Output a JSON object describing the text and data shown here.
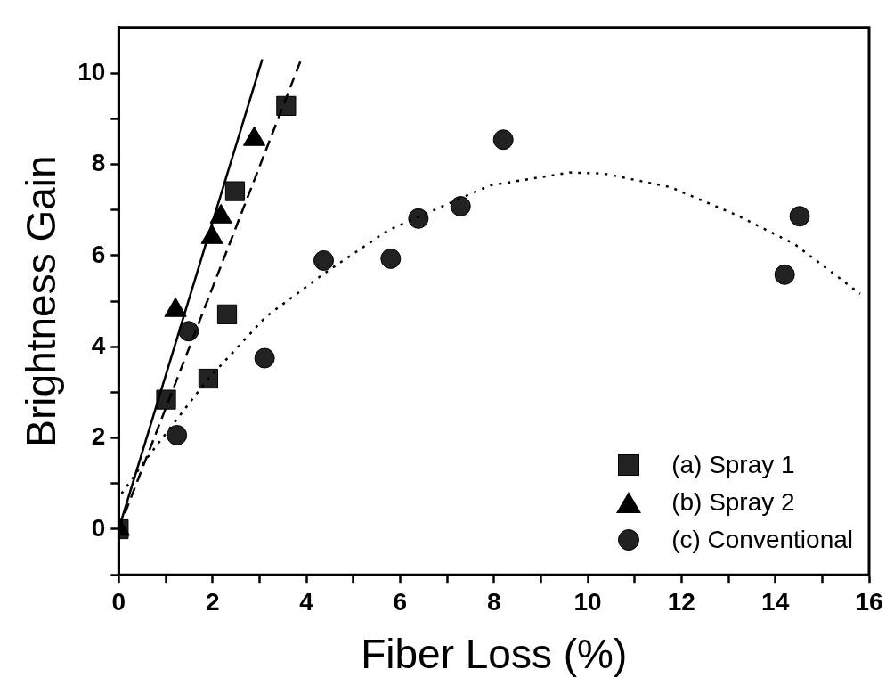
{
  "chart_data": {
    "type": "scatter",
    "xlabel": "Fiber Loss (%)",
    "ylabel": "Brightness Gain",
    "xlim": [
      0,
      16
    ],
    "xticks": [
      0,
      {
        "value": 1,
        "label": null
      },
      2,
      {
        "value": 3,
        "label": null
      },
      4,
      {
        "value": 5,
        "label": null
      },
      6,
      {
        "value": 7,
        "label": null
      },
      8,
      {
        "value": 9,
        "label": null
      },
      10,
      {
        "value": 11,
        "label": null
      },
      12,
      {
        "value": 13,
        "label": null
      },
      14,
      {
        "value": 15,
        "label": null
      },
      16
    ],
    "ylim": [
      -1,
      11
    ],
    "yticks": [
      {
        "value": -1,
        "label": null
      },
      0,
      {
        "value": 1,
        "label": null
      },
      2,
      {
        "value": 3,
        "label": null
      },
      4,
      {
        "value": 5,
        "label": null
      },
      6,
      {
        "value": 7,
        "label": null
      },
      8,
      {
        "value": 9,
        "label": null
      },
      10
    ],
    "grid": false,
    "legend": "bottom right",
    "series": [
      {
        "name": "(a) Spray 1",
        "type": "scatter",
        "marker": "square",
        "color": "#222222",
        "x": [
          0,
          1.01,
          1.91,
          2.31,
          2.48,
          3.57
        ],
        "values": [
          0,
          2.84,
          3.3,
          4.71,
          7.41,
          9.28
        ]
      },
      {
        "name": "(b) Spray 2",
        "type": "scatter",
        "marker": "triangle",
        "color": "#000000",
        "x": [
          0,
          1.21,
          1.99,
          2.18,
          2.89
        ],
        "values": [
          0,
          4.8,
          6.4,
          6.85,
          8.55
        ]
      },
      {
        "name": "(c) Conventional",
        "type": "scatter",
        "marker": "circle",
        "color": "#222222",
        "x": [
          1.24,
          1.49,
          3.11,
          4.37,
          5.8,
          6.39,
          7.29,
          8.2,
          14.2,
          14.52
        ],
        "values": [
          2.06,
          4.34,
          3.75,
          5.89,
          5.93,
          6.81,
          7.08,
          8.54,
          5.58,
          6.86
        ]
      },
      {
        "type": "line",
        "marker": "none",
        "line_style": "solid",
        "color": "#000000",
        "x": [
          0,
          3.06
        ],
        "values": [
          0,
          10.3
        ]
      },
      {
        "type": "line",
        "marker": "none",
        "line_style": "dashed",
        "color": "#000000",
        "x": [
          0,
          3.89
        ],
        "values": [
          0,
          10.3
        ]
      },
      {
        "type": "line",
        "marker": "none",
        "line_style": "dotted",
        "color": "#000000",
        "x": [
          0.06,
          0.61,
          1.87,
          3.13,
          4.37,
          5.74,
          7.92,
          8.18,
          9.61,
          10.33,
          11.76,
          13.19,
          14.41,
          15.81
        ],
        "values": [
          0.78,
          1.57,
          3.25,
          4.65,
          5.6,
          6.55,
          7.54,
          7.58,
          7.82,
          7.8,
          7.5,
          6.88,
          6.25,
          5.16
        ]
      }
    ]
  }
}
